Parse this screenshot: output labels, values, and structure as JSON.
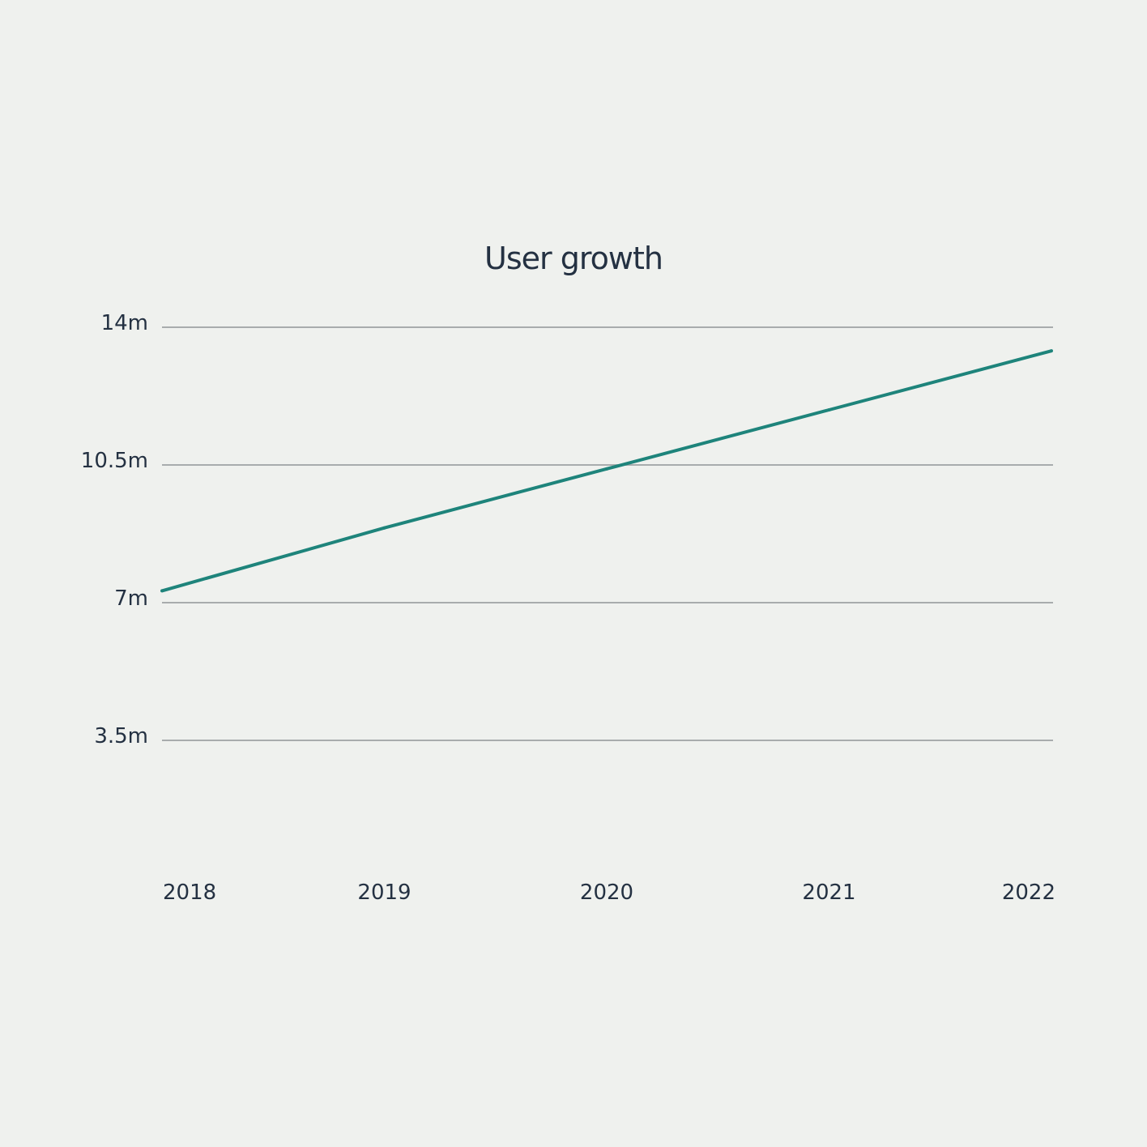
{
  "colors": {
    "background": "#eff1ee",
    "line": "#1e847b",
    "grid": "#a8acad",
    "text": "#243142"
  },
  "chart_data": {
    "type": "line",
    "title": "User growth",
    "xlabel": "",
    "ylabel": "",
    "x": [
      "2018",
      "2019",
      "2020",
      "2021",
      "2022"
    ],
    "y_ticks": [
      {
        "value": 3.5,
        "label": "3.5m"
      },
      {
        "value": 7,
        "label": "7m"
      },
      {
        "value": 10.5,
        "label": "10.5m"
      },
      {
        "value": 14,
        "label": "14m"
      }
    ],
    "ylim": [
      0,
      14
    ],
    "grid": true,
    "legend": "none",
    "series": [
      {
        "values": [
          7.3,
          8.9,
          10.4,
          11.9,
          13.4
        ]
      }
    ]
  }
}
